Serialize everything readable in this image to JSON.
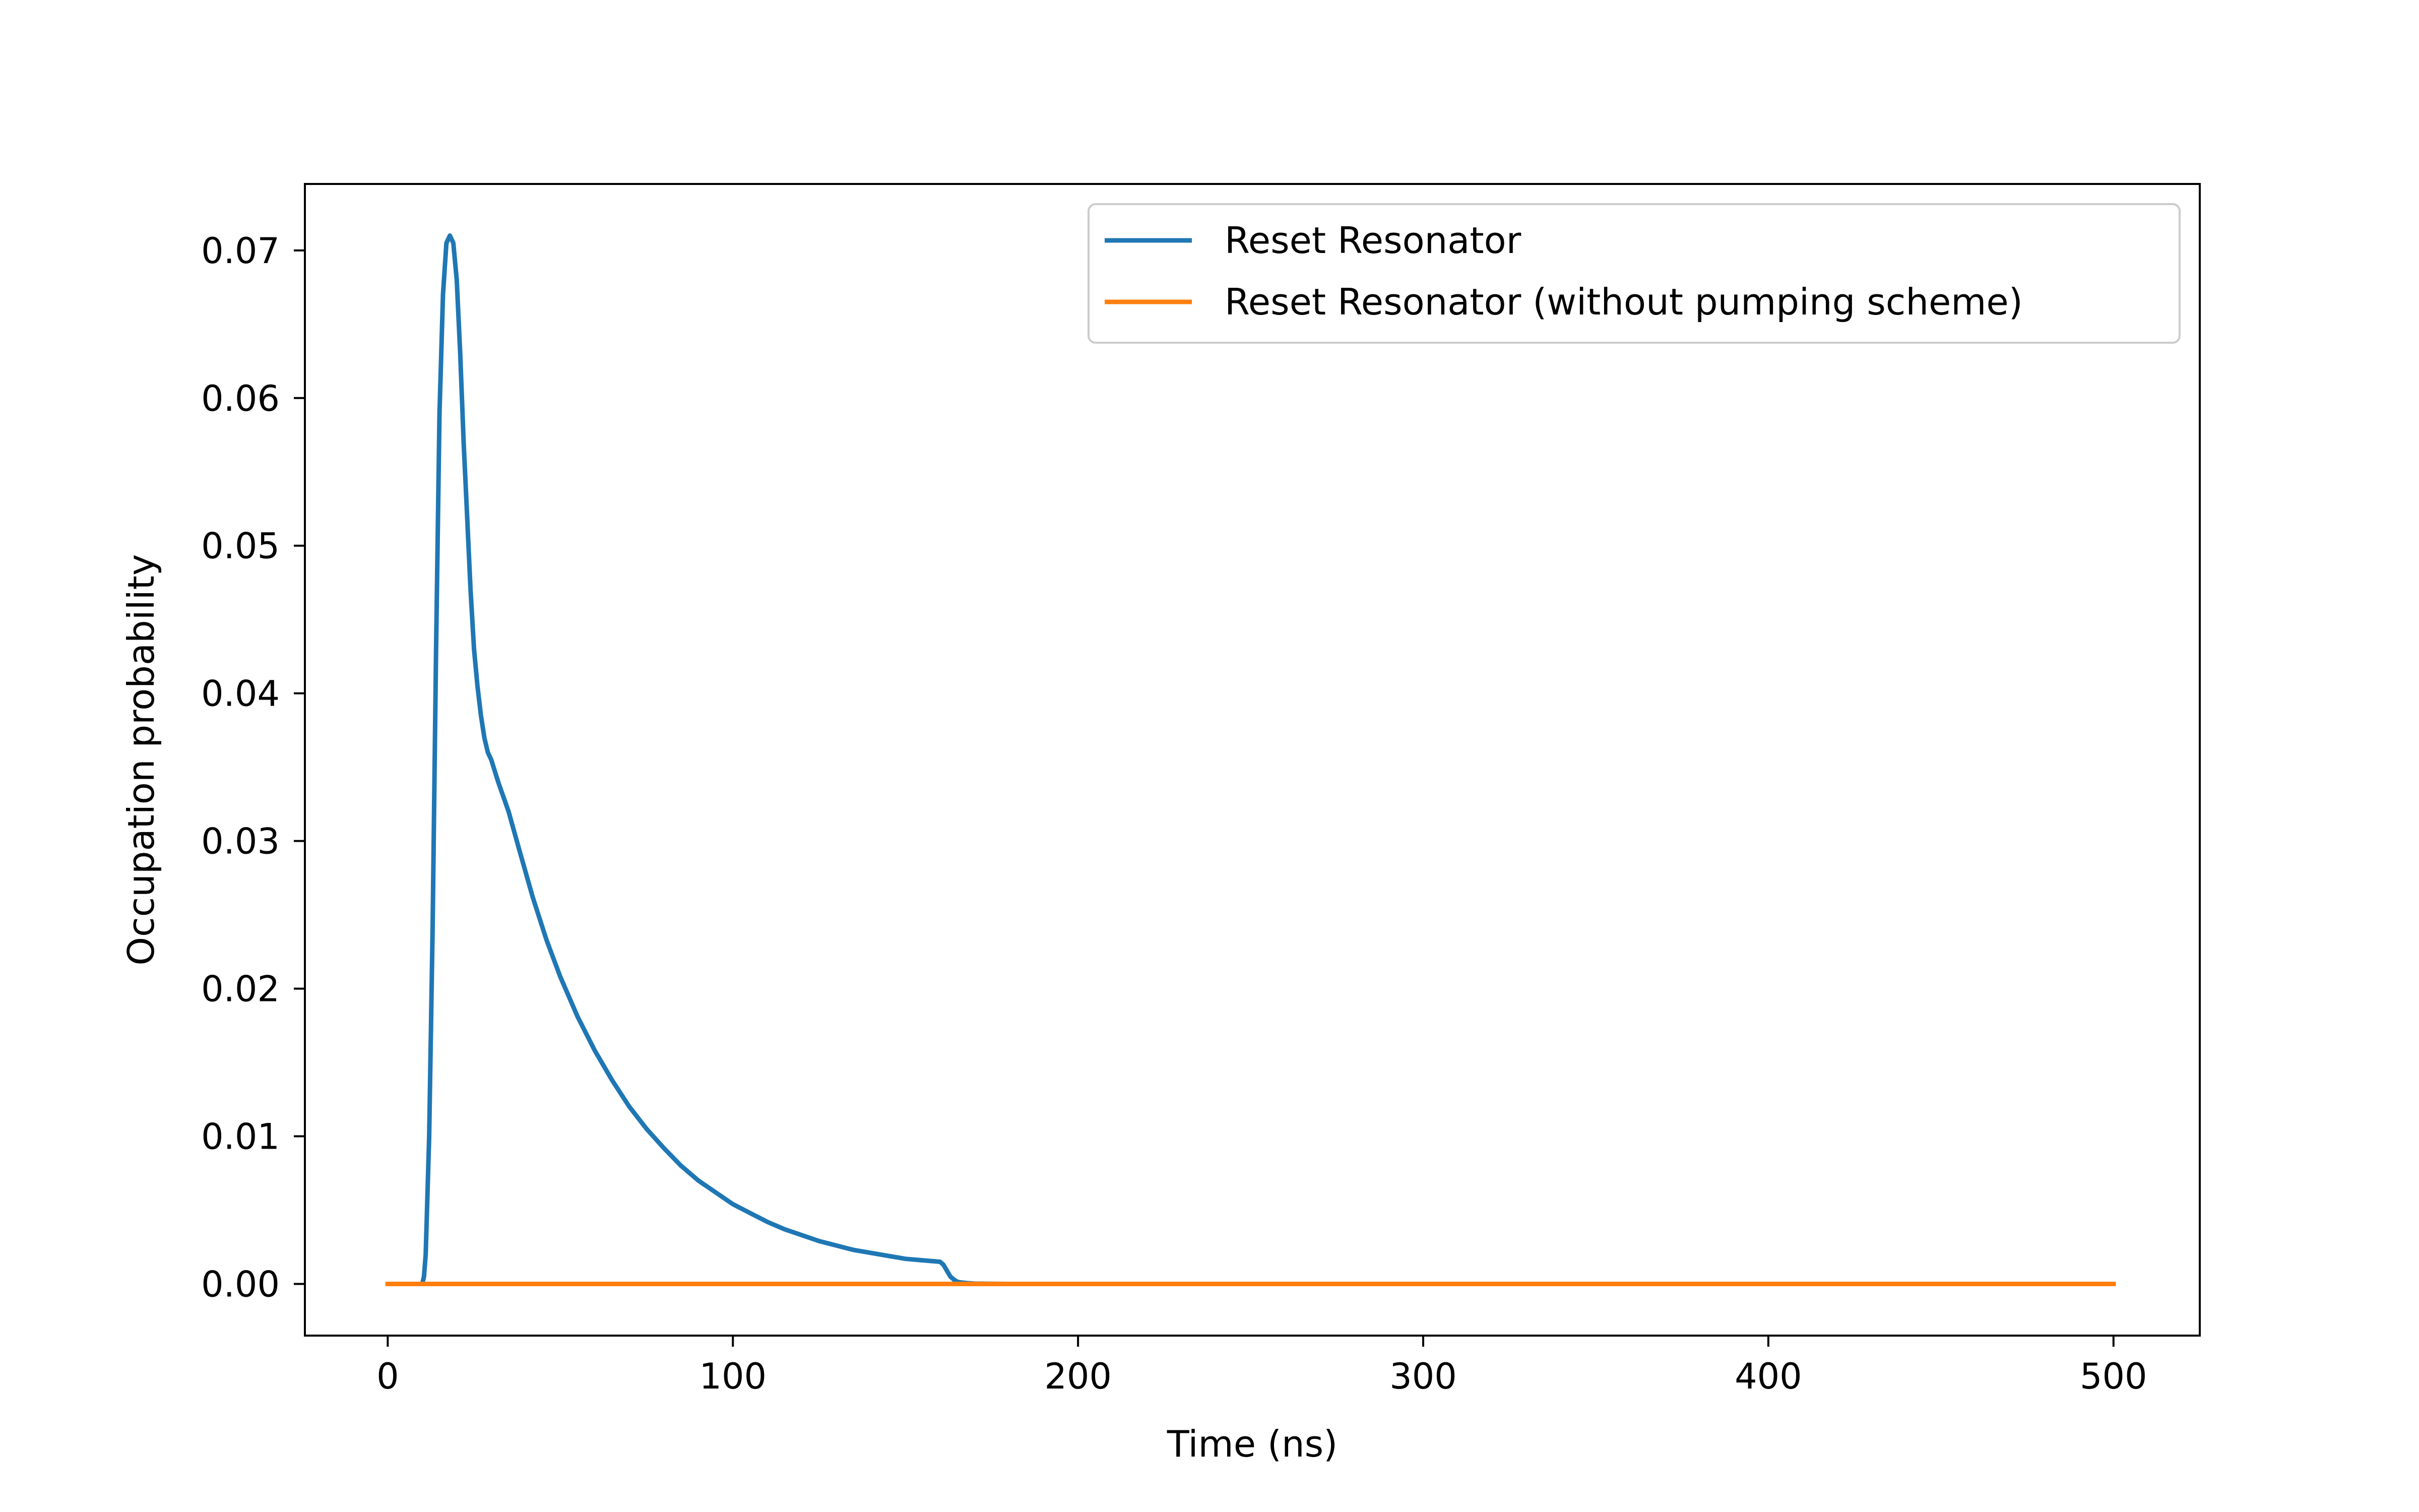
{
  "chart_data": {
    "type": "line",
    "title": "",
    "xlabel": "Time (ns)",
    "ylabel": "Occupation probability",
    "xlim": [
      -24,
      525
    ],
    "ylim": [
      -0.0035,
      0.0745
    ],
    "xticks": [
      0,
      100,
      200,
      300,
      400,
      500
    ],
    "xtick_labels": [
      "0",
      "100",
      "200",
      "300",
      "400",
      "500"
    ],
    "yticks": [
      0.0,
      0.01,
      0.02,
      0.03,
      0.04,
      0.05,
      0.06,
      0.07
    ],
    "ytick_labels": [
      "0.00",
      "0.01",
      "0.02",
      "0.03",
      "0.04",
      "0.05",
      "0.06",
      "0.07"
    ],
    "grid": false,
    "legend": {
      "position": "top-right"
    },
    "series": [
      {
        "name": "Reset Resonator",
        "color": "#1f77b4",
        "x": [
          0,
          10,
          10.5,
          11,
          12,
          13,
          14,
          15,
          16,
          17,
          18,
          19,
          20,
          21,
          22,
          23,
          24,
          25,
          26,
          27,
          28,
          29,
          30,
          32,
          35,
          38,
          42,
          46,
          50,
          55,
          60,
          65,
          70,
          75,
          80,
          85,
          90,
          95,
          100,
          105,
          110,
          115,
          120,
          125,
          130,
          135,
          140,
          145,
          150,
          155,
          160,
          161,
          162,
          163,
          164,
          165,
          166,
          168,
          170,
          175,
          180,
          200,
          300,
          400,
          500
        ],
        "y": [
          0.0,
          0.0,
          0.0005,
          0.002,
          0.01,
          0.024,
          0.043,
          0.059,
          0.067,
          0.0705,
          0.071,
          0.0705,
          0.068,
          0.063,
          0.057,
          0.052,
          0.047,
          0.043,
          0.0405,
          0.0385,
          0.037,
          0.036,
          0.0355,
          0.034,
          0.032,
          0.0295,
          0.0262,
          0.0233,
          0.0208,
          0.0181,
          0.0158,
          0.0138,
          0.012,
          0.0105,
          0.0092,
          0.008,
          0.007,
          0.0062,
          0.0054,
          0.0048,
          0.0042,
          0.0037,
          0.0033,
          0.0029,
          0.0026,
          0.0023,
          0.0021,
          0.0019,
          0.0017,
          0.0016,
          0.0015,
          0.0013,
          0.0009,
          0.0005,
          0.0003,
          0.00015,
          0.0001,
          5e-05,
          2e-05,
          5e-06,
          0.0,
          0.0,
          0.0,
          0.0,
          0.0
        ]
      },
      {
        "name": "Reset Resonator (without pumping scheme)",
        "color": "#ff7f0e",
        "x": [
          0,
          500
        ],
        "y": [
          0.0,
          0.0
        ]
      }
    ]
  }
}
